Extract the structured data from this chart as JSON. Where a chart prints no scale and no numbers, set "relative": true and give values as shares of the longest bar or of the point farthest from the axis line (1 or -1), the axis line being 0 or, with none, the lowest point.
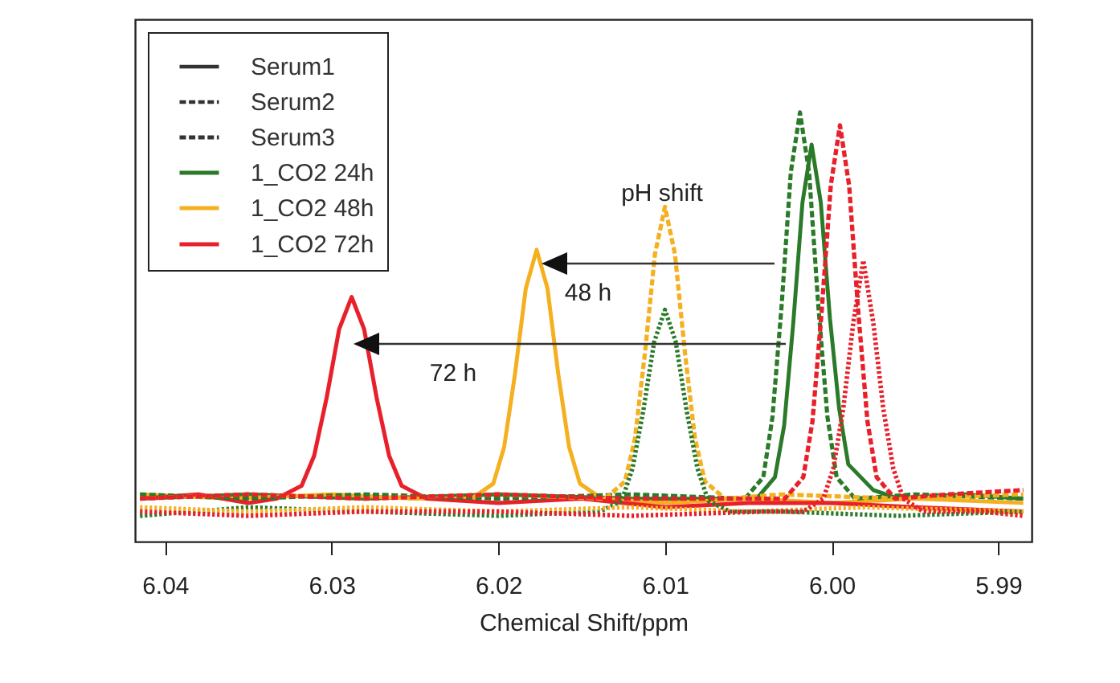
{
  "chart_data": {
    "type": "line",
    "xlabel": "Chemical Shift/ppm",
    "xlim": [
      6.0418,
      5.988
    ],
    "xticks": [
      6.04,
      6.03,
      6.02,
      6.01,
      {
        "value": 6,
        "label": "6.00"
      },
      5.99
    ],
    "relative": true,
    "legend": "top left",
    "annotations": [
      "pH shift",
      "48 h",
      "72 h"
    ],
    "series": [
      {
        "name": "Serum1",
        "color": "#333333",
        "line_style": "solid"
      },
      {
        "name": "Serum2",
        "color": "#333333",
        "line_style": "dashed"
      },
      {
        "name": "Serum3",
        "color": "#333333",
        "line_style": "dashed"
      },
      {
        "name": "1_CO2 24h",
        "color": "#2a7a2a",
        "line_style": "solid",
        "x": [
          6.0415,
          6.035,
          6.028,
          6.02,
          6.012,
          6.0045,
          6.0034,
          6.00285,
          6.0023,
          6.00175,
          6.0012,
          6.00065,
          6.0001,
          5.99955,
          5.999,
          5.9975,
          5.996,
          5.992,
          5.9885
        ],
        "values": [
          0.1,
          0.11,
          0.1,
          0.11,
          0.1,
          0.1,
          0.15,
          0.27,
          0.51,
          0.79,
          0.925,
          0.79,
          0.52,
          0.31,
          0.18,
          0.12,
          0.1,
          0.11,
          0.1
        ]
      },
      {
        "name": "1_CO2 48h",
        "color": "#f5b020",
        "line_style": "solid",
        "x": [
          6.0415,
          6.036,
          6.03,
          6.025,
          6.0216,
          6.0203,
          6.01965,
          6.019,
          6.01835,
          6.0177,
          6.01705,
          6.0164,
          6.01575,
          6.0151,
          6.0138,
          6.01,
          6.005,
          6.0,
          5.995,
          5.9885
        ],
        "values": [
          0.11,
          0.1,
          0.11,
          0.1,
          0.1,
          0.135,
          0.22,
          0.39,
          0.59,
          0.68,
          0.59,
          0.39,
          0.22,
          0.135,
          0.1,
          0.09,
          0.1,
          0.09,
          0.1,
          0.09
        ]
      },
      {
        "name": "1_CO2 72h",
        "color": "#e8202a",
        "line_style": "solid",
        "x": [
          6.0415,
          6.038,
          6.035,
          6.0333,
          6.0318,
          6.03105,
          6.0303,
          6.02955,
          6.0288,
          6.02805,
          6.0273,
          6.02655,
          6.0258,
          6.0243,
          6.02,
          6.015,
          6.01,
          6.005,
          6.0,
          5.995,
          5.9885
        ],
        "values": [
          0.1,
          0.11,
          0.09,
          0.1,
          0.13,
          0.2,
          0.335,
          0.495,
          0.57,
          0.495,
          0.335,
          0.2,
          0.13,
          0.1,
          0.09,
          0.1,
          0.08,
          0.09,
          0.09,
          0.08,
          0.07
        ]
      },
      {
        "color": "#2a7a2a",
        "line_style": "dashed",
        "x": [
          6.0415,
          6.035,
          6.028,
          6.02,
          6.012,
          6.0052,
          6.0041,
          6.00355,
          6.003,
          6.00245,
          6.0019,
          6.00135,
          6.0008,
          6.00025,
          5.9997,
          5.9986,
          5.995,
          5.9885
        ],
        "values": [
          0.11,
          0.1,
          0.11,
          0.1,
          0.11,
          0.1,
          0.15,
          0.29,
          0.55,
          0.86,
          1.0,
          0.86,
          0.55,
          0.29,
          0.15,
          0.1,
          0.11,
          0.1
        ]
      },
      {
        "color": "#f5b020",
        "line_style": "dashed",
        "x": [
          6.0415,
          6.035,
          6.028,
          6.02,
          6.0136,
          6.0124,
          6.0118,
          6.0112,
          6.0106,
          6.01,
          6.0094,
          6.0088,
          6.0082,
          6.0076,
          6.0064,
          6.003,
          5.996,
          5.9885
        ],
        "values": [
          0.1,
          0.11,
          0.1,
          0.11,
          0.1,
          0.14,
          0.24,
          0.44,
          0.67,
          0.78,
          0.67,
          0.44,
          0.24,
          0.14,
          0.1,
          0.11,
          0.1,
          0.11
        ]
      },
      {
        "color": "#e8202a",
        "line_style": "dashed",
        "x": [
          6.0415,
          6.035,
          6.028,
          6.02,
          6.012,
          6.006,
          6.0028,
          6.0017,
          6.00115,
          6.0006,
          6.00005,
          5.9995,
          5.99895,
          5.9984,
          5.99785,
          5.9973,
          5.9962,
          5.993,
          5.9885
        ],
        "values": [
          0.1,
          0.11,
          0.1,
          0.11,
          0.1,
          0.1,
          0.1,
          0.15,
          0.28,
          0.535,
          0.83,
          0.97,
          0.83,
          0.535,
          0.28,
          0.15,
          0.1,
          0.11,
          0.12
        ]
      },
      {
        "color": "#2a7a2a",
        "line_style": "dotted",
        "x": [
          6.0415,
          6.035,
          6.028,
          6.02,
          6.0139,
          6.0126,
          6.01195,
          6.0113,
          6.01065,
          6.01,
          6.00935,
          6.0087,
          6.00805,
          6.0074,
          6.0061,
          6.003,
          5.996,
          5.9885
        ],
        "values": [
          0.06,
          0.08,
          0.07,
          0.06,
          0.07,
          0.095,
          0.17,
          0.305,
          0.465,
          0.54,
          0.465,
          0.305,
          0.17,
          0.095,
          0.07,
          0.07,
          0.06,
          0.07
        ]
      },
      {
        "color": "#f5b020",
        "line_style": "dotted",
        "x": [
          6.0415,
          6.035,
          6.028,
          6.02,
          6.012,
          6.005,
          5.998,
          5.9885
        ],
        "values": [
          0.08,
          0.07,
          0.08,
          0.07,
          0.08,
          0.07,
          0.08,
          0.07
        ]
      },
      {
        "color": "#e8202a",
        "line_style": "dotted",
        "x": [
          6.0415,
          6.035,
          6.028,
          6.02,
          6.012,
          6.004,
          6.0017,
          6.0005,
          5.9999,
          5.9993,
          5.9987,
          5.9981,
          5.9975,
          5.9969,
          5.9963,
          5.9957,
          5.9945,
          5.991,
          5.9885
        ],
        "values": [
          0.07,
          0.06,
          0.07,
          0.07,
          0.06,
          0.07,
          0.07,
          0.1,
          0.17,
          0.31,
          0.51,
          0.655,
          0.51,
          0.31,
          0.17,
          0.1,
          0.07,
          0.07,
          0.06
        ]
      }
    ]
  }
}
